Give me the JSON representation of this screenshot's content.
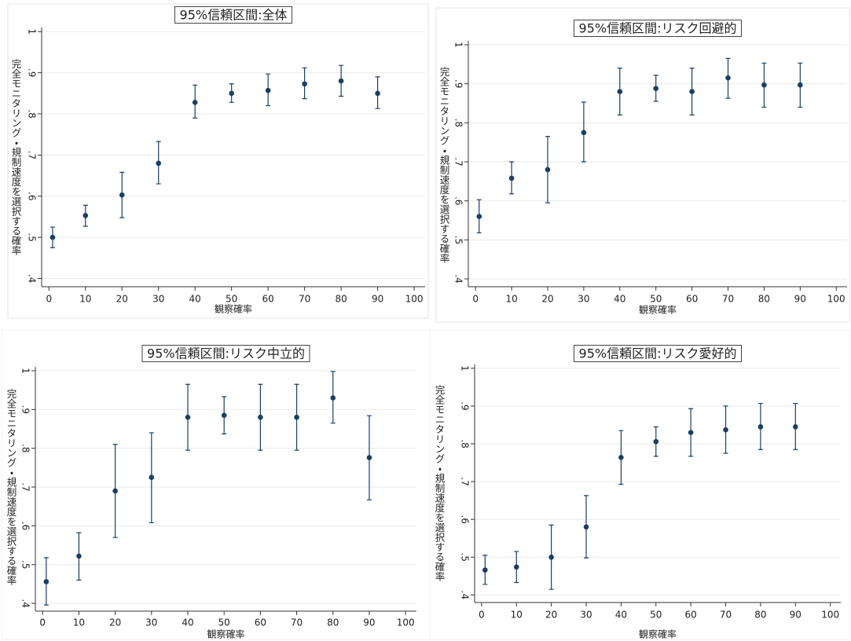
{
  "chart_data": [
    {
      "type": "errorbar",
      "title": "95%信頼区間:全体",
      "x_label": "観察確率",
      "y_label": "完全モニタリング・規制速度を選択する確率",
      "x": [
        1,
        10,
        20,
        30,
        40,
        50,
        60,
        70,
        80,
        90
      ],
      "values": [
        0.5,
        0.553,
        0.603,
        0.68,
        0.828,
        0.85,
        0.857,
        0.873,
        0.88,
        0.85
      ],
      "ci_lower": [
        0.475,
        0.527,
        0.548,
        0.63,
        0.79,
        0.828,
        0.82,
        0.837,
        0.843,
        0.813
      ],
      "ci_upper": [
        0.525,
        0.578,
        0.658,
        0.733,
        0.87,
        0.873,
        0.897,
        0.912,
        0.918,
        0.89
      ],
      "color": "#1a3f63",
      "xlim": [
        -2,
        103
      ],
      "ylim": [
        0.38,
        1.01
      ],
      "xticks": [
        0,
        10,
        20,
        30,
        40,
        50,
        60,
        70,
        80,
        90,
        100
      ],
      "yticks": [
        {
          "value": 0.4,
          "label": ".4"
        },
        {
          "value": 0.5,
          "label": ".5"
        },
        {
          "value": 0.6,
          "label": ".6"
        },
        {
          "value": 0.7,
          "label": ".7"
        },
        {
          "value": 0.8,
          "label": ".8"
        },
        {
          "value": 0.9,
          "label": ".9"
        },
        1
      ],
      "grid": true
    },
    {
      "type": "errorbar",
      "title": "95%信頼区間:リスク回避的",
      "x_label": "観察確率",
      "y_label": "完全モニタリング・規制速度を選択する確率",
      "x": [
        1,
        10,
        20,
        30,
        40,
        50,
        60,
        70,
        80,
        90
      ],
      "values": [
        0.56,
        0.658,
        0.68,
        0.775,
        0.88,
        0.888,
        0.88,
        0.915,
        0.897,
        0.897
      ],
      "ci_lower": [
        0.518,
        0.618,
        0.595,
        0.7,
        0.82,
        0.855,
        0.82,
        0.863,
        0.84,
        0.84
      ],
      "ci_upper": [
        0.603,
        0.7,
        0.765,
        0.853,
        0.94,
        0.922,
        0.94,
        0.965,
        0.953,
        0.953
      ],
      "color": "#1a3f63",
      "xlim": [
        -2,
        103
      ],
      "ylim": [
        0.38,
        1.01
      ],
      "xticks": [
        0,
        10,
        20,
        30,
        40,
        50,
        60,
        70,
        80,
        90,
        100
      ],
      "yticks": [
        {
          "value": 0.4,
          "label": ".4"
        },
        {
          "value": 0.5,
          "label": ".5"
        },
        {
          "value": 0.6,
          "label": ".6"
        },
        {
          "value": 0.7,
          "label": ".7"
        },
        {
          "value": 0.8,
          "label": ".8"
        },
        {
          "value": 0.9,
          "label": ".9"
        },
        1
      ],
      "grid": true
    },
    {
      "type": "errorbar",
      "title": "95%信頼区間:リスク中立的",
      "x_label": "観察確率",
      "y_label": "完全モニタリング・規制速度を選択する確率",
      "x": [
        1,
        10,
        20,
        30,
        40,
        50,
        60,
        70,
        80,
        90
      ],
      "values": [
        0.456,
        0.522,
        0.69,
        0.725,
        0.88,
        0.885,
        0.88,
        0.88,
        0.93,
        0.776
      ],
      "ci_lower": [
        0.396,
        0.46,
        0.57,
        0.608,
        0.795,
        0.837,
        0.795,
        0.795,
        0.865,
        0.667
      ],
      "ci_upper": [
        0.518,
        0.582,
        0.81,
        0.84,
        0.965,
        0.933,
        0.965,
        0.965,
        0.998,
        0.884
      ],
      "color": "#1a3f63",
      "xlim": [
        -2,
        103
      ],
      "ylim": [
        0.38,
        1.01
      ],
      "xticks": [
        0,
        10,
        20,
        30,
        40,
        50,
        60,
        70,
        80,
        90,
        100
      ],
      "yticks": [
        {
          "value": 0.4,
          "label": ".4"
        },
        {
          "value": 0.5,
          "label": ".5"
        },
        {
          "value": 0.6,
          "label": ".6"
        },
        {
          "value": 0.7,
          "label": ".7"
        },
        {
          "value": 0.8,
          "label": ".8"
        },
        {
          "value": 0.9,
          "label": ".9"
        },
        1
      ],
      "grid": true
    },
    {
      "type": "errorbar",
      "title": "95%信頼区間:リスク愛好的",
      "x_label": "観察確率",
      "y_label": "完全モニタリング・規制速度を選択する確率",
      "x": [
        1,
        10,
        20,
        30,
        40,
        50,
        60,
        70,
        80,
        90
      ],
      "values": [
        0.466,
        0.474,
        0.5,
        0.58,
        0.764,
        0.806,
        0.83,
        0.837,
        0.845,
        0.845
      ],
      "ci_lower": [
        0.428,
        0.433,
        0.415,
        0.498,
        0.693,
        0.767,
        0.767,
        0.775,
        0.785,
        0.785
      ],
      "ci_upper": [
        0.505,
        0.515,
        0.585,
        0.663,
        0.835,
        0.845,
        0.893,
        0.9,
        0.907,
        0.907
      ],
      "color": "#1a3f63",
      "xlim": [
        -2,
        103
      ],
      "ylim": [
        0.38,
        1.01
      ],
      "xticks": [
        0,
        10,
        20,
        30,
        40,
        50,
        60,
        70,
        80,
        90,
        100
      ],
      "yticks": [
        {
          "value": 0.4,
          "label": ".4"
        },
        {
          "value": 0.5,
          "label": ".5"
        },
        {
          "value": 0.6,
          "label": ".6"
        },
        {
          "value": 0.7,
          "label": ".7"
        },
        {
          "value": 0.8,
          "label": ".8"
        },
        {
          "value": 0.9,
          "label": ".9"
        },
        1
      ],
      "grid": true
    }
  ]
}
